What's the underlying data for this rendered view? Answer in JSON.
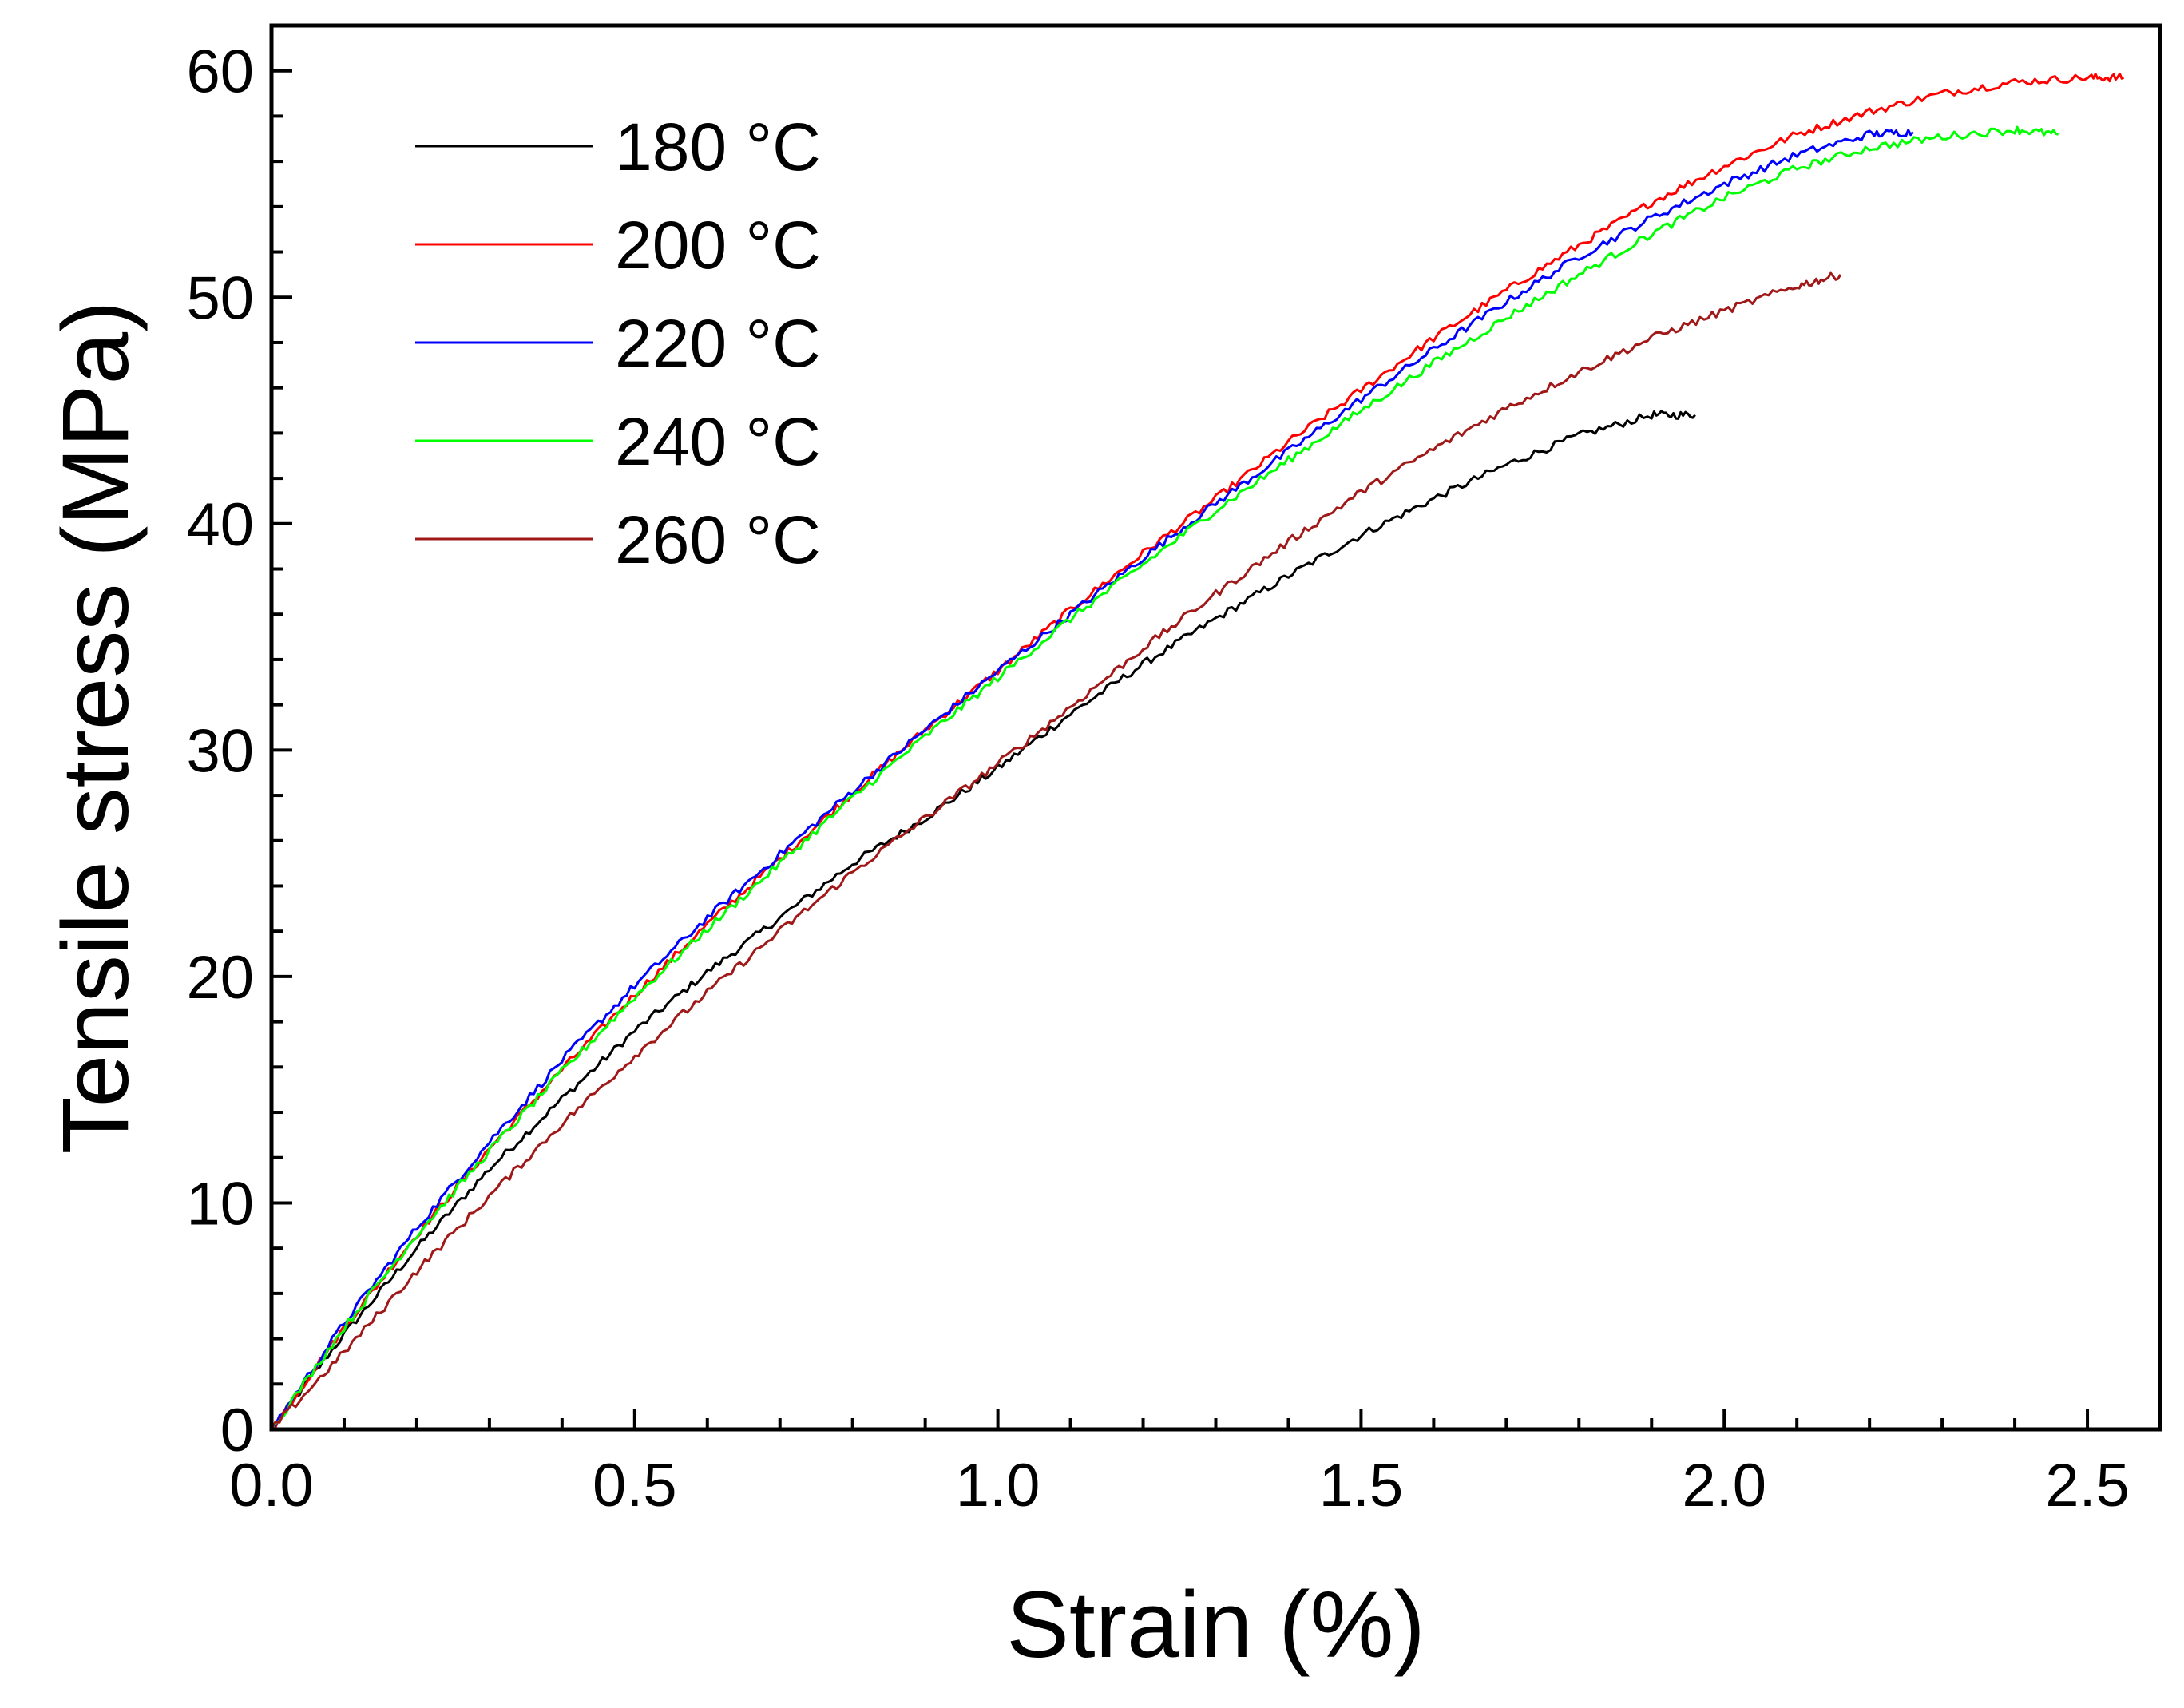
{
  "chart_data": {
    "type": "line",
    "title": "",
    "xlabel": "Strain (%)",
    "ylabel": "Tensile stress (MPa)",
    "xlim": [
      0,
      2.6
    ],
    "ylim": [
      0,
      62
    ],
    "xticks": [
      0.0,
      0.5,
      1.0,
      1.5,
      2.0,
      2.5
    ],
    "xtick_labels": [
      "0.0",
      "0.5",
      "1.0",
      "1.5",
      "2.0",
      "2.5"
    ],
    "yticks": [
      0,
      10,
      20,
      30,
      40,
      50,
      60
    ],
    "ytick_labels": [
      "0",
      "10",
      "20",
      "30",
      "40",
      "50",
      "60"
    ],
    "grid": false,
    "legend_position": "top-left",
    "series": [
      {
        "name": "180 °C",
        "color": "#000000",
        "x": [
          0.0,
          0.1,
          0.2,
          0.3,
          0.4,
          0.5,
          0.6,
          0.7,
          0.8,
          0.9,
          1.0,
          1.1,
          1.2,
          1.3,
          1.4,
          1.5,
          1.6,
          1.7,
          1.8,
          1.9,
          1.96
        ],
        "y": [
          0.0,
          4.2,
          8.0,
          11.5,
          14.6,
          17.6,
          20.2,
          22.6,
          25.0,
          27.0,
          29.2,
          31.6,
          33.8,
          35.8,
          37.7,
          39.5,
          41.1,
          42.6,
          43.9,
          44.8,
          44.8
        ]
      },
      {
        "name": "200 °C",
        "color": "#ff0000",
        "x": [
          0.0,
          0.1,
          0.2,
          0.3,
          0.4,
          0.5,
          0.6,
          0.7,
          0.8,
          0.9,
          1.0,
          1.1,
          1.2,
          1.3,
          1.4,
          1.5,
          1.6,
          1.7,
          1.8,
          1.9,
          2.0,
          2.1,
          2.2,
          2.3,
          2.4,
          2.5,
          2.55
        ],
        "y": [
          0.0,
          4.5,
          8.6,
          12.4,
          15.9,
          19.2,
          22.3,
          25.2,
          28.1,
          30.9,
          33.5,
          36.2,
          38.7,
          41.1,
          43.6,
          45.9,
          48.2,
          50.3,
          52.3,
          54.2,
          55.8,
          57.2,
          58.2,
          59.0,
          59.5,
          59.7,
          59.7
        ]
      },
      {
        "name": "220 °C",
        "color": "#0000ff",
        "x": [
          0.0,
          0.1,
          0.2,
          0.3,
          0.4,
          0.5,
          0.6,
          0.7,
          0.8,
          0.9,
          1.0,
          1.1,
          1.2,
          1.3,
          1.4,
          1.5,
          1.6,
          1.7,
          1.8,
          1.9,
          2.0,
          2.1,
          2.2,
          2.26
        ],
        "y": [
          0.0,
          4.7,
          8.9,
          12.7,
          16.3,
          19.6,
          22.6,
          25.4,
          28.2,
          30.9,
          33.5,
          36.0,
          38.5,
          40.9,
          43.2,
          45.5,
          47.7,
          49.8,
          51.8,
          53.5,
          55.0,
          56.3,
          57.2,
          57.3
        ]
      },
      {
        "name": "240 °C",
        "color": "#00ff00",
        "x": [
          0.0,
          0.1,
          0.2,
          0.3,
          0.4,
          0.5,
          0.6,
          0.7,
          0.8,
          0.9,
          1.0,
          1.1,
          1.2,
          1.3,
          1.4,
          1.5,
          1.6,
          1.7,
          1.8,
          1.9,
          2.0,
          2.1,
          2.2,
          2.3,
          2.4,
          2.46
        ],
        "y": [
          0.0,
          4.5,
          8.6,
          12.3,
          15.8,
          19.1,
          22.1,
          25.0,
          27.9,
          30.6,
          33.2,
          35.8,
          38.2,
          40.6,
          42.8,
          45.0,
          47.1,
          49.1,
          51.0,
          52.8,
          54.4,
          55.7,
          56.6,
          57.1,
          57.4,
          57.2
        ]
      },
      {
        "name": "260 °C",
        "color": "#a01818",
        "x": [
          0.0,
          0.1,
          0.2,
          0.3,
          0.4,
          0.5,
          0.6,
          0.7,
          0.8,
          0.9,
          1.0,
          1.1,
          1.2,
          1.3,
          1.4,
          1.5,
          1.6,
          1.7,
          1.8,
          1.9,
          2.0,
          2.1,
          2.16
        ],
        "y": [
          0.0,
          3.4,
          7.0,
          10.3,
          13.5,
          16.5,
          19.3,
          22.0,
          24.6,
          27.0,
          29.4,
          31.9,
          34.5,
          36.9,
          39.2,
          41.4,
          43.3,
          45.1,
          46.7,
          48.2,
          49.4,
          50.5,
          51.0
        ]
      }
    ]
  }
}
